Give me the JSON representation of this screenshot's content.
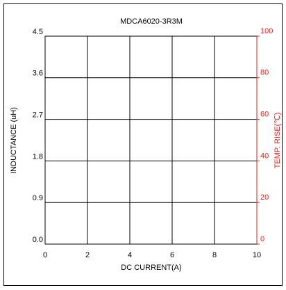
{
  "chart_data": {
    "type": "line",
    "title": "MDCA6020-3R3M",
    "xlabel": "DC CURRENT(A)",
    "ylabel": "INDUCTANCE (uH)",
    "y2label": "TEMP. RISE(℃)",
    "xlim": [
      0,
      10
    ],
    "xticks": [
      0,
      2,
      4,
      6,
      8,
      10
    ],
    "ylim": [
      0,
      4.5
    ],
    "yticks": [
      {
        "value": 0,
        "label": "0.0"
      },
      0.9,
      1.8,
      2.7,
      3.6,
      4.5
    ],
    "y2lim": [
      0,
      100
    ],
    "y2ticks": [
      0,
      20,
      40,
      60,
      80,
      100
    ],
    "y2color": "#e8231f",
    "grid": true,
    "series": []
  }
}
